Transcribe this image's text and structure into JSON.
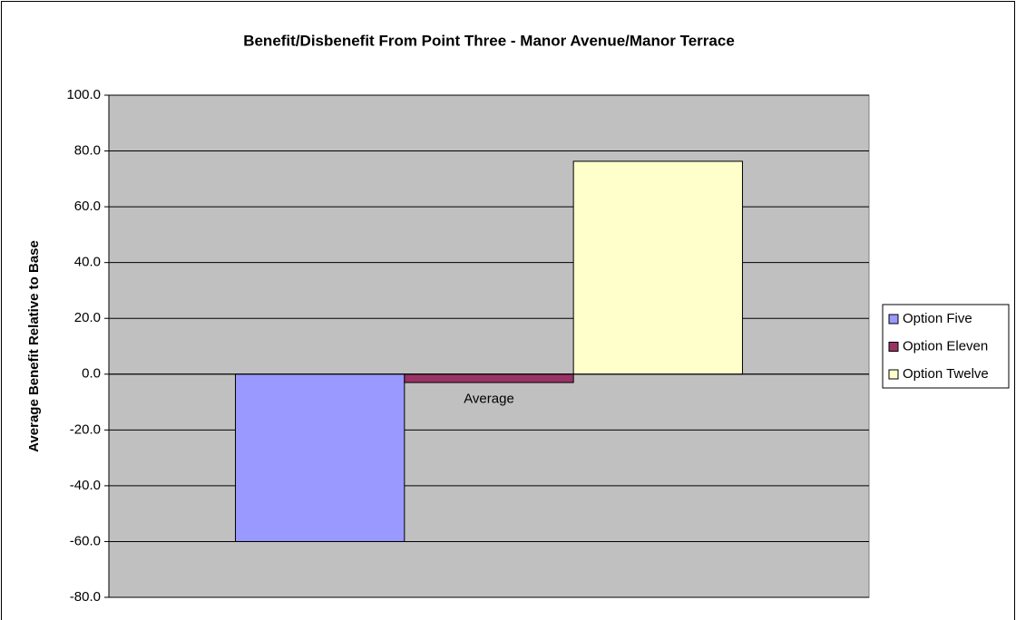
{
  "chart_data": {
    "type": "bar",
    "title": "Benefit/Disbenefit From Point Three - Manor Avenue/Manor Terrace",
    "y_label": "Average Benefit Relative to Base",
    "categories": [
      "Average"
    ],
    "series": [
      {
        "name": "Option Five",
        "color": "#9999ff",
        "values": [
          -60
        ]
      },
      {
        "name": "Option Eleven",
        "color": "#993366",
        "values": [
          -3
        ]
      },
      {
        "name": "Option Twelve",
        "color": "#ffffcc",
        "values": [
          76.3
        ]
      }
    ],
    "ylim": [
      -80,
      100
    ],
    "yticks": [
      {
        "value": -80,
        "label": "-80.0"
      },
      {
        "value": -60,
        "label": "-60.0"
      },
      {
        "value": -40,
        "label": "-40.0"
      },
      {
        "value": -20,
        "label": "-20.0"
      },
      {
        "value": 0,
        "label": "0.0"
      },
      {
        "value": 20,
        "label": "20.0"
      },
      {
        "value": 40,
        "label": "40.0"
      },
      {
        "value": 60,
        "label": "60.0"
      },
      {
        "value": 80,
        "label": "80.0"
      },
      {
        "value": 100,
        "label": "100.0"
      }
    ],
    "grid": true,
    "legend": "right"
  }
}
